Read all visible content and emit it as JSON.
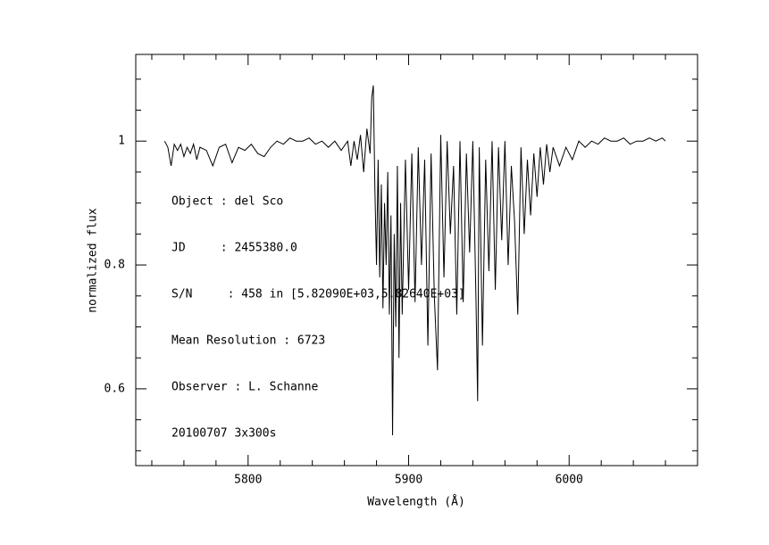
{
  "chart_data": {
    "type": "line",
    "xlabel": "Wavelength (Å)",
    "ylabel": "normalized flux",
    "annotations": [
      "Object : del Sco",
      "JD     : 2455380.0",
      "S/N     : 458 in [5.82090E+03,5.82640E+03]",
      "Mean Resolution : 6723",
      "Observer : L. Schanne",
      "20100707 3x300s"
    ],
    "xlim": [
      5730,
      6080
    ],
    "ylim": [
      0.476,
      1.14
    ],
    "xticks": [
      5800,
      5900,
      6000
    ],
    "yticks": [
      0.6,
      0.8,
      1
    ],
    "xminorticks": [
      5740,
      5760,
      5780,
      5820,
      5840,
      5860,
      5880,
      5920,
      5940,
      5960,
      5980,
      6020,
      6040,
      6060
    ],
    "yminorticks": [
      0.5,
      0.55,
      0.65,
      0.7,
      0.75,
      0.85,
      0.9,
      0.95,
      1.05,
      1.1
    ],
    "color": "#000000",
    "x": [
      5748,
      5750,
      5752,
      5754,
      5756,
      5758,
      5760,
      5762,
      5764,
      5766,
      5768,
      5770,
      5774,
      5778,
      5782,
      5786,
      5790,
      5794,
      5798,
      5802,
      5806,
      5810,
      5814,
      5818,
      5822,
      5826,
      5830,
      5834,
      5838,
      5842,
      5846,
      5850,
      5854,
      5858,
      5862,
      5864,
      5866,
      5868,
      5870,
      5872,
      5874,
      5876,
      5877,
      5878,
      5879,
      5880,
      5881,
      5882,
      5883,
      5884,
      5885,
      5886,
      5887,
      5888,
      5889,
      5890,
      5891,
      5892,
      5893,
      5894,
      5895,
      5896,
      5898,
      5900,
      5902,
      5904,
      5906,
      5908,
      5910,
      5912,
      5914,
      5916,
      5918,
      5920,
      5922,
      5924,
      5926,
      5928,
      5930,
      5932,
      5934,
      5936,
      5938,
      5940,
      5942,
      5943,
      5944,
      5946,
      5948,
      5950,
      5952,
      5954,
      5956,
      5958,
      5960,
      5962,
      5964,
      5966,
      5968,
      5970,
      5972,
      5974,
      5976,
      5978,
      5980,
      5982,
      5984,
      5986,
      5988,
      5990,
      5994,
      5998,
      6002,
      6006,
      6010,
      6014,
      6018,
      6022,
      6026,
      6030,
      6034,
      6038,
      6042,
      6046,
      6050,
      6054,
      6058,
      6060
    ],
    "values": [
      1.0,
      0.99,
      0.96,
      0.995,
      0.985,
      0.995,
      0.975,
      0.99,
      0.98,
      0.995,
      0.97,
      0.99,
      0.985,
      0.96,
      0.99,
      0.995,
      0.965,
      0.99,
      0.985,
      0.995,
      0.98,
      0.975,
      0.99,
      1.0,
      0.995,
      1.005,
      1.0,
      1.0,
      1.005,
      0.995,
      1.0,
      0.99,
      1.0,
      0.985,
      1.0,
      0.96,
      1.0,
      0.97,
      1.01,
      0.95,
      1.02,
      0.98,
      1.07,
      1.09,
      0.92,
      0.8,
      0.97,
      0.78,
      0.93,
      0.73,
      0.9,
      0.8,
      0.95,
      0.72,
      0.88,
      0.525,
      0.85,
      0.7,
      0.96,
      0.65,
      0.9,
      0.72,
      0.97,
      0.76,
      0.98,
      0.74,
      0.99,
      0.8,
      0.97,
      0.67,
      0.98,
      0.75,
      0.63,
      1.01,
      0.78,
      1.0,
      0.85,
      0.96,
      0.72,
      1.0,
      0.74,
      0.98,
      0.82,
      1.0,
      0.74,
      0.58,
      0.99,
      0.67,
      0.97,
      0.79,
      1.0,
      0.76,
      0.99,
      0.84,
      1.0,
      0.8,
      0.96,
      0.87,
      0.72,
      0.99,
      0.85,
      0.97,
      0.88,
      0.98,
      0.91,
      0.99,
      0.93,
      0.995,
      0.95,
      0.99,
      0.96,
      0.99,
      0.97,
      1.0,
      0.99,
      1.0,
      0.995,
      1.005,
      1.0,
      1.0,
      1.005,
      0.995,
      1.0,
      1.0,
      1.005,
      1.0,
      1.005,
      1.0
    ]
  }
}
